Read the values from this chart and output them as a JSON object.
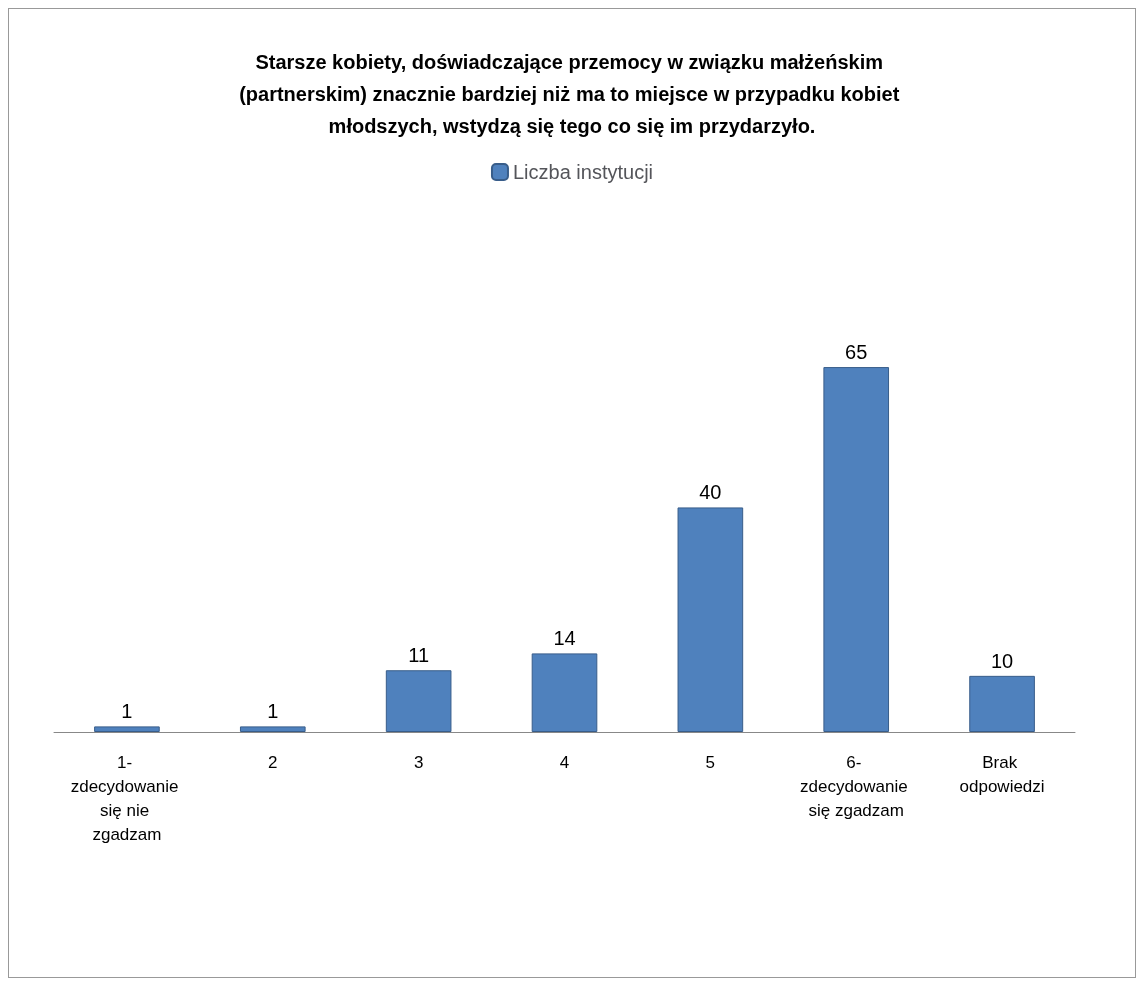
{
  "chart_data": {
    "type": "bar",
    "title": "Starsze kobiety, doświadczające przemocy w związku małżeńskim (partnerskim) znacznie bardziej niż ma to miejsce w przypadku kobiet młodszych, wstydzą się tego co się im przydarzyło.",
    "categories": [
      "1- zdecydowanie się nie zgadzam",
      "2",
      "3",
      "4",
      "5",
      "6- zdecydowanie się zgadzam",
      "Brak odpowiedzi"
    ],
    "series": [
      {
        "name": "Liczba instytucji",
        "color": "#4f81bd",
        "values": [
          1,
          1,
          11,
          14,
          40,
          65,
          10
        ]
      }
    ],
    "data_labels": true,
    "legend": "top"
  }
}
